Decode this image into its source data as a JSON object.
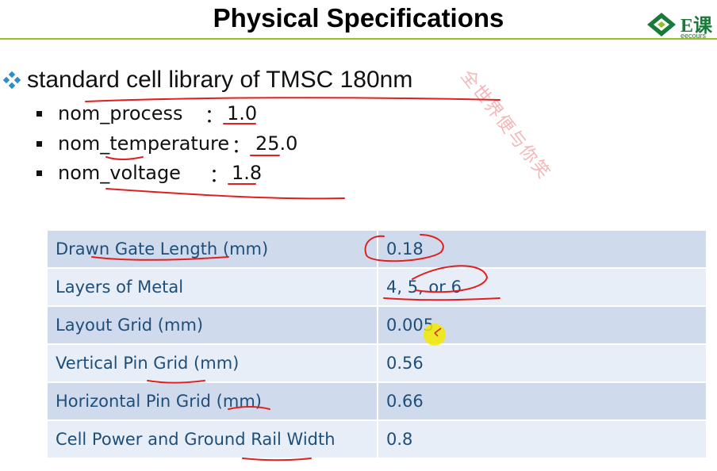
{
  "slide": {
    "title": "Physical Specifications",
    "logo": {
      "text": "E课",
      "subtext": "eecours",
      "icon": "diamond-leaf-icon"
    },
    "watermark": "全世界便与你笑",
    "heading": "standard cell library of TMSC 180nm",
    "params": [
      {
        "label": "nom_process",
        "sep": "：",
        "value": "1.0"
      },
      {
        "label": "nom_temperature",
        "sep": "：",
        "value": "25.0"
      },
      {
        "label": "nom_voltage",
        "sep": "：",
        "value": "1.8"
      }
    ],
    "table": [
      {
        "name": "Drawn Gate Length (mm)",
        "value": "0.18"
      },
      {
        "name": "Layers of Metal",
        "value": "4, 5, or 6"
      },
      {
        "name": "Layout Grid (mm)",
        "value": "0.005"
      },
      {
        "name": "Vertical Pin Grid (mm)",
        "value": "0.56"
      },
      {
        "name": "Horizontal Pin Grid (mm)",
        "value": "0.66"
      },
      {
        "name": "Cell Power and Ground Rail Width",
        "value": "0.8"
      }
    ]
  },
  "colors": {
    "title_rule": "#8fc31f",
    "table_text": "#1f4e79",
    "row_dark": "#cfdbec",
    "row_light": "#e8eef7",
    "annotation": "#e02020",
    "cursor_highlight": "#f5e900"
  }
}
